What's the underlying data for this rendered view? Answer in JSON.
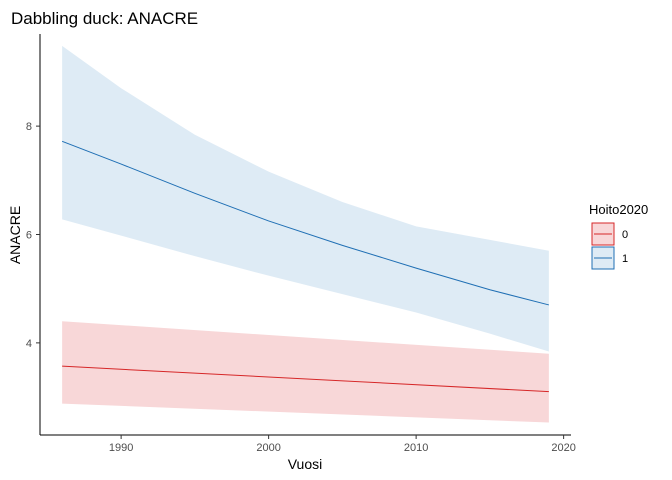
{
  "chart_data": {
    "type": "line",
    "title": "Dabbling duck: ANACRE",
    "xlabel": "Vuosi",
    "ylabel": "ANACRE",
    "xlim": [
      1984.5,
      2020.5
    ],
    "ylim": [
      2.3,
      9.7
    ],
    "x_ticks": [
      1990,
      2000,
      2010,
      2020
    ],
    "y_ticks": [
      4,
      6,
      8
    ],
    "grid": false,
    "legend": {
      "title": "Hoito2020",
      "position": "right"
    },
    "series": [
      {
        "name": "0",
        "line_color": "#d62728",
        "fill_color": "#f8d7d8",
        "x": [
          1986,
          2019
        ],
        "y": [
          3.57,
          3.1
        ],
        "lower": [
          2.88,
          2.53
        ],
        "upper": [
          4.4,
          3.8
        ]
      },
      {
        "name": "1",
        "line_color": "#1f6fb4",
        "fill_color": "#deebf5",
        "x": [
          1986,
          1990,
          1995,
          2000,
          2005,
          2010,
          2015,
          2019
        ],
        "y": [
          7.72,
          7.3,
          6.76,
          6.25,
          5.8,
          5.38,
          4.98,
          4.7
        ],
        "lower": [
          6.28,
          5.98,
          5.6,
          5.24,
          4.9,
          4.56,
          4.17,
          3.84
        ],
        "upper": [
          9.48,
          8.7,
          7.84,
          7.16,
          6.6,
          6.15,
          5.9,
          5.7
        ]
      }
    ]
  }
}
